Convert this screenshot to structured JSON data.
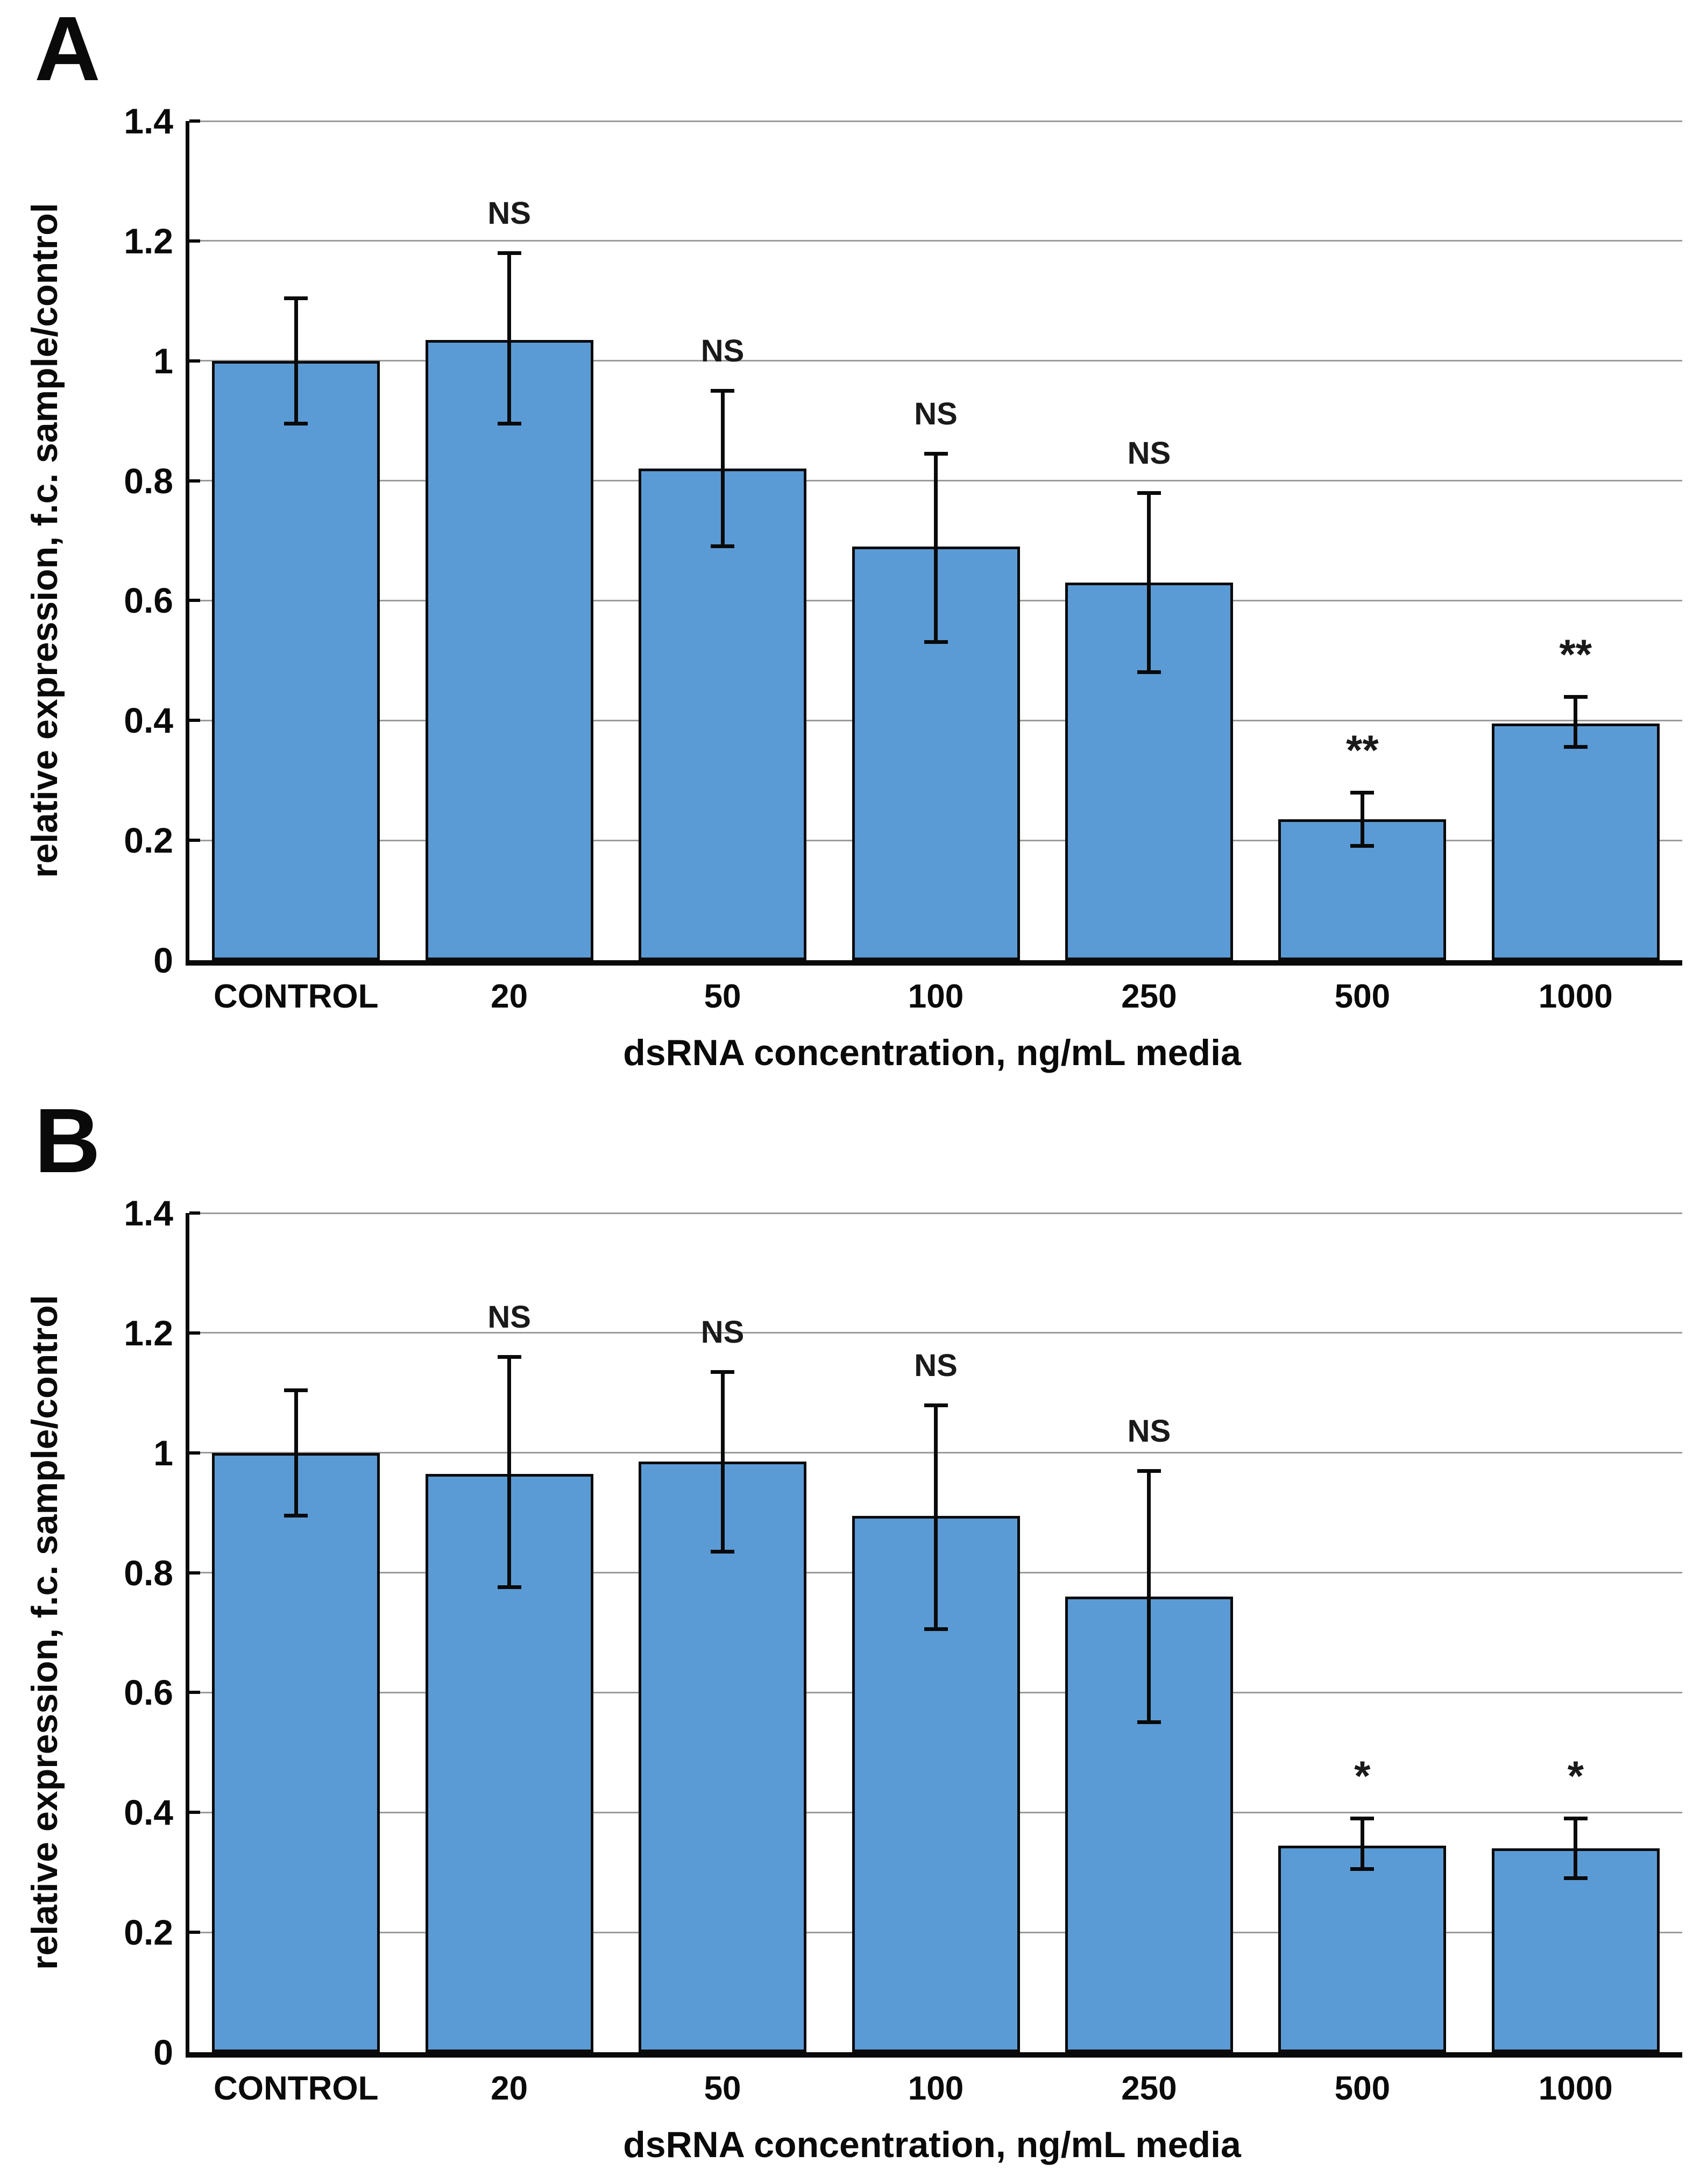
{
  "chart_data": [
    {
      "type": "bar",
      "panel": "A",
      "xlabel": "dsRNA concentration, ng/mL media",
      "ylabel": "relative expression, f.c. sample/control",
      "categories": [
        "CONTROL",
        "20",
        "50",
        "100",
        "250",
        "500",
        "1000"
      ],
      "values": [
        1.0,
        1.035,
        0.82,
        0.69,
        0.63,
        0.235,
        0.395
      ],
      "error_up": [
        0.105,
        0.145,
        0.13,
        0.155,
        0.15,
        0.045,
        0.045
      ],
      "error_down": [
        0.105,
        0.14,
        0.13,
        0.16,
        0.15,
        0.045,
        0.04
      ],
      "significance": [
        "",
        "NS",
        "NS",
        "NS",
        "NS",
        "**",
        "**"
      ],
      "ylim": [
        0,
        1.4
      ],
      "yticks": [
        0,
        0.2,
        0.4,
        0.6,
        0.8,
        1,
        1.2,
        1.4
      ],
      "ytick_labels": [
        "0",
        "0.2",
        "0.4",
        "0.6",
        "0.8",
        "1",
        "1.2",
        "1.4"
      ],
      "grid": true,
      "legend": "none",
      "bar_color": "#5B9BD5",
      "bar_border_color": "#000000",
      "error_bar_color": "#000000"
    },
    {
      "type": "bar",
      "panel": "B",
      "xlabel": "dsRNA concentration, ng/mL media",
      "ylabel": "relative expression, f.c. sample/control",
      "categories": [
        "CONTROL",
        "20",
        "50",
        "100",
        "250",
        "500",
        "1000"
      ],
      "values": [
        1.0,
        0.965,
        0.985,
        0.895,
        0.76,
        0.345,
        0.34
      ],
      "error_up": [
        0.105,
        0.195,
        0.15,
        0.185,
        0.21,
        0.045,
        0.05
      ],
      "error_down": [
        0.105,
        0.19,
        0.15,
        0.19,
        0.21,
        0.04,
        0.05
      ],
      "significance": [
        "",
        "NS",
        "NS",
        "NS",
        "NS",
        "*",
        "*"
      ],
      "ylim": [
        0,
        1.4
      ],
      "yticks": [
        0,
        0.2,
        0.4,
        0.6,
        0.8,
        1,
        1.2,
        1.4
      ],
      "ytick_labels": [
        "0",
        "0.2",
        "0.4",
        "0.6",
        "0.8",
        "1",
        "1.2",
        "1.4"
      ],
      "grid": true,
      "legend": "none",
      "bar_color": "#5B9BD5",
      "bar_border_color": "#000000",
      "error_bar_color": "#000000"
    }
  ]
}
